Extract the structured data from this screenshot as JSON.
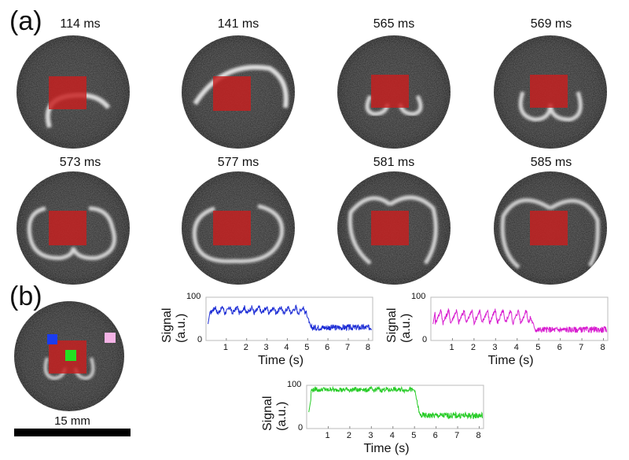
{
  "panels": {
    "a": "(a)",
    "b": "(b)"
  },
  "frames": [
    {
      "time": "114 ms",
      "shape": "arc-low"
    },
    {
      "time": "141 ms",
      "shape": "arc-wide"
    },
    {
      "time": "565 ms",
      "shape": "small-loops"
    },
    {
      "time": "569 ms",
      "shape": "medium-loops"
    },
    {
      "time": "573 ms",
      "shape": "big-loops"
    },
    {
      "time": "577 ms",
      "shape": "ring"
    },
    {
      "time": "581 ms",
      "shape": "heart"
    },
    {
      "time": "585 ms",
      "shape": "outer-ring"
    }
  ],
  "roi_colors": {
    "blue": "#1a3cf0",
    "green": "#22e022",
    "pink": "#f5b3e6",
    "red": "#cc1e1e"
  },
  "scale_bar": {
    "label": "15 mm"
  },
  "chart_data": [
    {
      "type": "line",
      "name": "blue-roi-signal",
      "color": "#1f2fd6",
      "xlabel": "Time (s)",
      "ylabel": "Signal\n(a.u.)",
      "xlim": [
        0,
        8.2
      ],
      "ylim": [
        0,
        100
      ],
      "xticks": [
        1,
        2,
        3,
        4,
        5,
        6,
        7,
        8
      ],
      "yticks": [
        0,
        100
      ],
      "profile": {
        "high_level": 70,
        "oscillation_amplitude": 15,
        "oscillation_period": 0.36,
        "drop_time": 4.9,
        "low_level": 30
      }
    },
    {
      "type": "line",
      "name": "pink-roi-signal",
      "color": "#d81ed0",
      "xlabel": "Time (s)",
      "ylabel": "Signal\n(a.u.)",
      "xlim": [
        0,
        8.2
      ],
      "ylim": [
        0,
        100
      ],
      "xticks": [
        1,
        2,
        3,
        4,
        5,
        6,
        7,
        8
      ],
      "yticks": [
        0,
        100
      ],
      "profile": {
        "high_level": 55,
        "oscillation_amplitude": 30,
        "oscillation_period": 0.36,
        "drop_time": 4.6,
        "low_level": 25
      }
    },
    {
      "type": "line",
      "name": "green-roi-signal",
      "color": "#28cc28",
      "xlabel": "Time (s)",
      "ylabel": "Signal\n(a.u.)",
      "xlim": [
        0,
        8.2
      ],
      "ylim": [
        0,
        100
      ],
      "xticks": [
        1,
        2,
        3,
        4,
        5,
        6,
        7,
        8
      ],
      "yticks": [
        0,
        100
      ],
      "profile": {
        "high_level": 90,
        "oscillation_amplitude": 4,
        "oscillation_period": 0.36,
        "drop_time": 5.0,
        "low_level": 30
      }
    }
  ]
}
